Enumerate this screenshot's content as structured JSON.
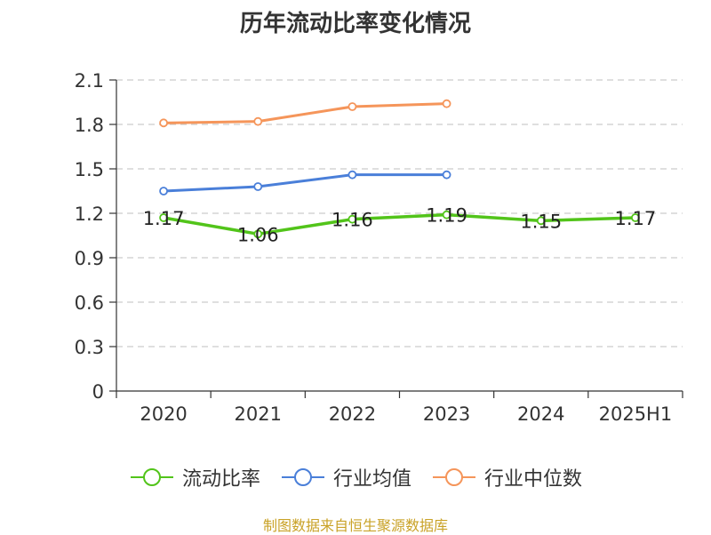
{
  "title": "历年流动比率变化情况",
  "source": "制图数据来自恒生聚源数据库",
  "colors": {
    "current_ratio": "#52c41a",
    "industry_avg": "#4a7fd9",
    "industry_median": "#f5955a",
    "grid": "#cccccc",
    "axis": "#333333"
  },
  "chart_data": {
    "type": "line",
    "x": [
      "2020",
      "2021",
      "2022",
      "2023",
      "2024",
      "2025H1"
    ],
    "y_ticks": [
      "0",
      "0.3",
      "0.6",
      "0.9",
      "1.2",
      "1.5",
      "1.8",
      "2.1"
    ],
    "ylim": [
      0,
      2.1
    ],
    "grid": true,
    "legend_position": "bottom",
    "series": [
      {
        "name": "流动比率",
        "values": [
          1.17,
          1.06,
          1.16,
          1.19,
          1.15,
          1.17
        ],
        "labels": [
          "1.17",
          "1.06",
          "1.16",
          "1.19",
          "1.15",
          "1.17"
        ]
      },
      {
        "name": "行业均值",
        "values": [
          1.35,
          1.38,
          1.46,
          1.46,
          null,
          null
        ]
      },
      {
        "name": "行业中位数",
        "values": [
          1.81,
          1.82,
          1.92,
          1.94,
          null,
          null
        ]
      }
    ]
  }
}
